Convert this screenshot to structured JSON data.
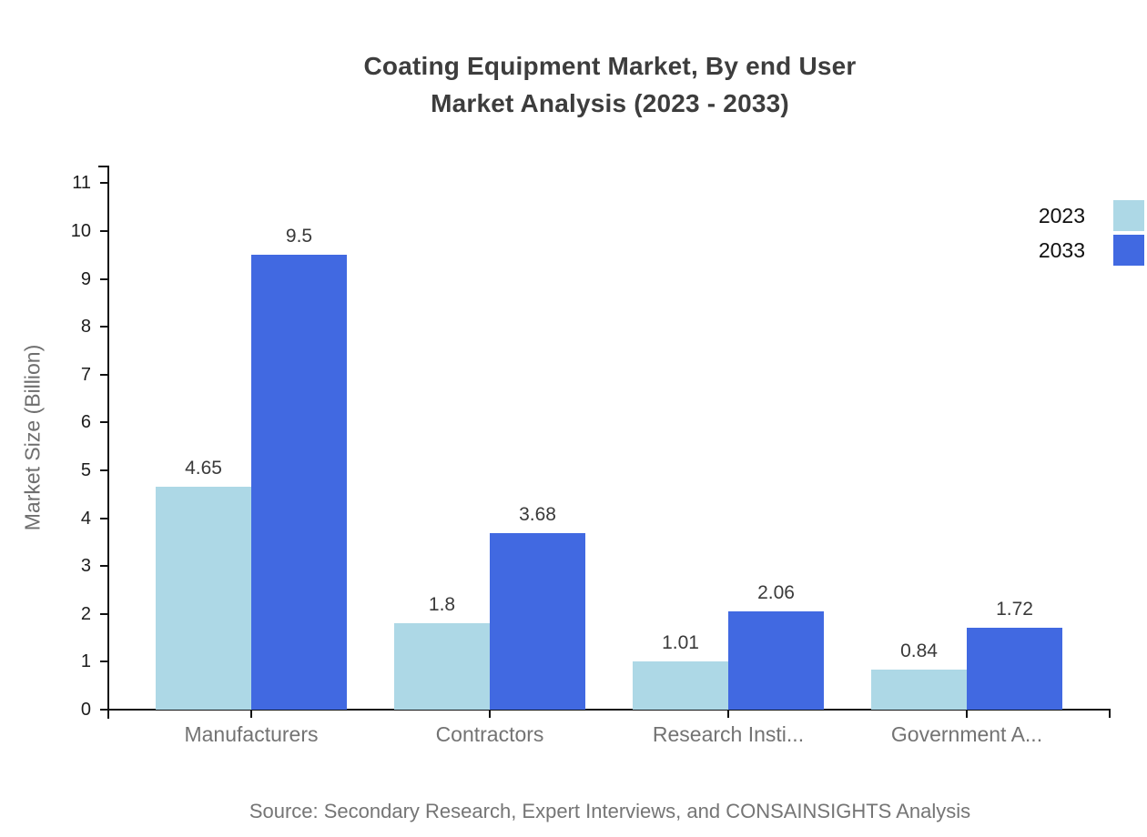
{
  "title": {
    "line1": "Coating Equipment Market, By end User",
    "line2": "Market Analysis (2023 - 2033)"
  },
  "y_axis_title": "Market Size (Billion)",
  "source": "Source: Secondary Research, Expert Interviews, and CONSAINSIGHTS Analysis",
  "legend": [
    {
      "label": "2023",
      "color": "#ADD8E6"
    },
    {
      "label": "2033",
      "color": "#4169E1"
    }
  ],
  "chart_data": {
    "type": "bar",
    "title": "Coating Equipment Market, By end User Market Analysis (2023 - 2033)",
    "categories": [
      "Manufacturers",
      "Contractors",
      "Research Insti...",
      "Government A..."
    ],
    "series": [
      {
        "name": "2023",
        "color": "#ADD8E6",
        "values": [
          4.65,
          1.8,
          1.01,
          0.84
        ]
      },
      {
        "name": "2033",
        "color": "#4169E1",
        "values": [
          9.5,
          3.68,
          2.06,
          1.72
        ]
      }
    ],
    "xlabel": "",
    "ylabel": "Market Size (Billion)",
    "ylim": [
      0,
      11
    ],
    "yticks": [
      0,
      1,
      2,
      3,
      4,
      5,
      6,
      7,
      8,
      9,
      10,
      11
    ],
    "grid": false,
    "legend_position": "top-right",
    "value_labels": true
  }
}
